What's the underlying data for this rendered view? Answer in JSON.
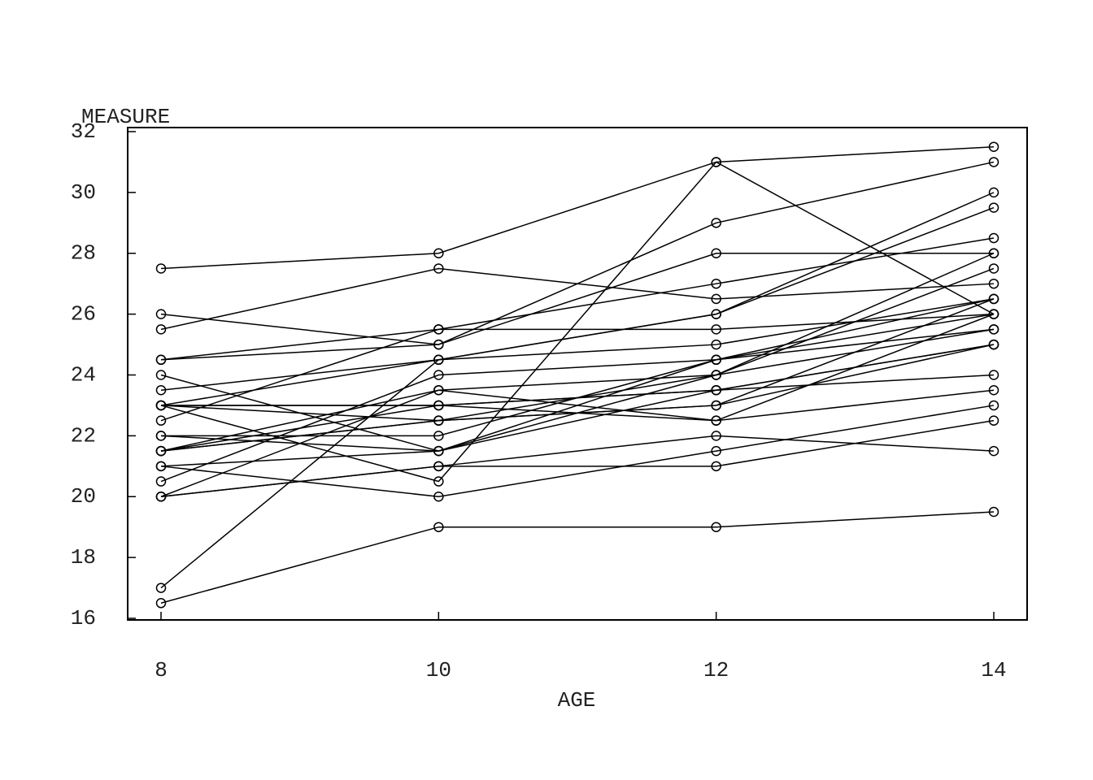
{
  "chart_data": {
    "type": "line",
    "x_label": "AGE",
    "y_label": "MEASURE",
    "x": [
      8,
      10,
      12,
      14
    ],
    "xlim": [
      8,
      14
    ],
    "xticks": [
      8,
      10,
      12,
      14
    ],
    "ylim": [
      16,
      32
    ],
    "yticks": [
      16,
      18,
      20,
      22,
      24,
      26,
      28,
      30,
      32
    ],
    "color": "#000000",
    "marker": "circle",
    "series": [
      {
        "values": [
          21,
          20,
          21.5,
          23
        ]
      },
      {
        "values": [
          21,
          21.5,
          24,
          25.5
        ]
      },
      {
        "values": [
          20.5,
          24,
          24.5,
          26
        ]
      },
      {
        "values": [
          23.5,
          24.5,
          25,
          26.5
        ]
      },
      {
        "values": [
          21.5,
          23,
          22.5,
          23.5
        ]
      },
      {
        "values": [
          20,
          21,
          21,
          22.5
        ]
      },
      {
        "values": [
          21.5,
          22.5,
          23,
          25
        ]
      },
      {
        "values": [
          23,
          23,
          23.5,
          24
        ]
      },
      {
        "values": [
          20,
          21,
          22,
          21.5
        ]
      },
      {
        "values": [
          16.5,
          19,
          19,
          19.5
        ]
      },
      {
        "values": [
          24.5,
          25,
          28,
          28
        ]
      },
      {
        "values": [
          26,
          25,
          29,
          31
        ]
      },
      {
        "values": [
          21.5,
          22.5,
          23,
          26.5
        ]
      },
      {
        "values": [
          23,
          22.5,
          24,
          27.5
        ]
      },
      {
        "values": [
          25.5,
          27.5,
          26.5,
          27
        ]
      },
      {
        "values": [
          20,
          23.5,
          22.5,
          26
        ]
      },
      {
        "values": [
          24.5,
          25.5,
          27,
          28.5
        ]
      },
      {
        "values": [
          22,
          22,
          24.5,
          26.5
        ]
      },
      {
        "values": [
          24,
          21.5,
          24.5,
          25.5
        ]
      },
      {
        "values": [
          23,
          20.5,
          31,
          26
        ]
      },
      {
        "values": [
          27.5,
          28,
          31,
          31.5
        ]
      },
      {
        "values": [
          23,
          23,
          23.5,
          25
        ]
      },
      {
        "values": [
          21.5,
          23.5,
          24,
          28
        ]
      },
      {
        "values": [
          17,
          24.5,
          26,
          29.5
        ]
      },
      {
        "values": [
          22.5,
          25.5,
          25.5,
          26
        ]
      },
      {
        "values": [
          23,
          24.5,
          26,
          30
        ]
      },
      {
        "values": [
          22,
          21.5,
          23.5,
          25
        ]
      }
    ]
  }
}
